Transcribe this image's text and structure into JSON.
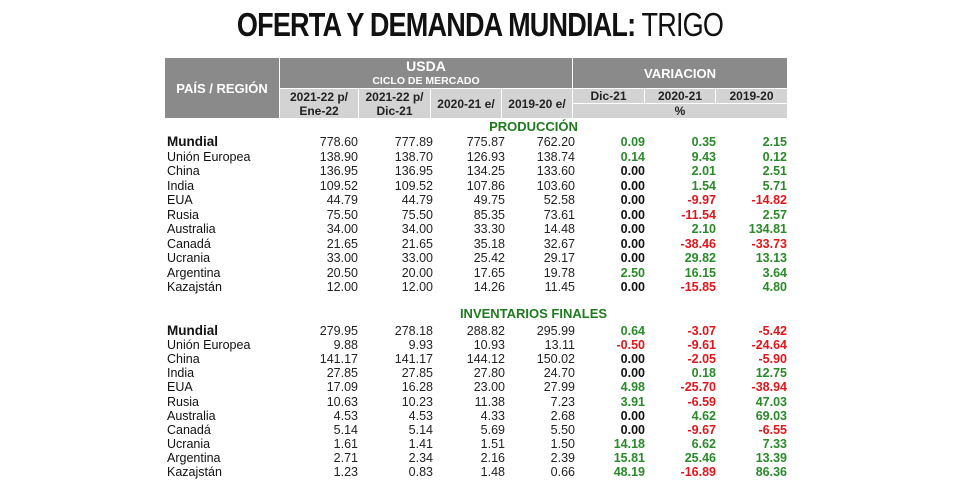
{
  "title": {
    "bold": "OFERTA Y DEMANDA MUNDIAL:",
    "light": "TRIGO"
  },
  "header": {
    "pais": "PAÍS / REGIÓN",
    "usda": "USDA",
    "ciclo": "CICLO DE MERCADO",
    "variacion": "VARIACION",
    "cols": [
      "2021-22 p/",
      "2021-22 p/",
      "2020-21 e/",
      "2019-20 e/"
    ],
    "cols_sub": [
      "Ene-22",
      "Dic-21"
    ],
    "var_cols": [
      "Dic-21",
      "2020-21",
      "2019-20"
    ],
    "pct": "%"
  },
  "sections": [
    {
      "title": "PRODUCCIÓN",
      "rows": [
        {
          "name": "Mundial",
          "vals": [
            "778.60",
            "777.89",
            "775.87",
            "762.20"
          ],
          "var": [
            "0.09",
            "0.35",
            "2.15"
          ]
        },
        {
          "name": "Unión Europea",
          "vals": [
            "138.90",
            "138.70",
            "126.93",
            "138.74"
          ],
          "var": [
            "0.14",
            "9.43",
            "0.12"
          ]
        },
        {
          "name": "China",
          "vals": [
            "136.95",
            "136.95",
            "134.25",
            "133.60"
          ],
          "var": [
            "0.00",
            "2.01",
            "2.51"
          ]
        },
        {
          "name": "India",
          "vals": [
            "109.52",
            "109.52",
            "107.86",
            "103.60"
          ],
          "var": [
            "0.00",
            "1.54",
            "5.71"
          ]
        },
        {
          "name": "EUA",
          "vals": [
            "44.79",
            "44.79",
            "49.75",
            "52.58"
          ],
          "var": [
            "0.00",
            "-9.97",
            "-14.82"
          ]
        },
        {
          "name": "Rusia",
          "vals": [
            "75.50",
            "75.50",
            "85.35",
            "73.61"
          ],
          "var": [
            "0.00",
            "-11.54",
            "2.57"
          ]
        },
        {
          "name": "Australia",
          "vals": [
            "34.00",
            "34.00",
            "33.30",
            "14.48"
          ],
          "var": [
            "0.00",
            "2.10",
            "134.81"
          ]
        },
        {
          "name": "Canadá",
          "vals": [
            "21.65",
            "21.65",
            "35.18",
            "32.67"
          ],
          "var": [
            "0.00",
            "-38.46",
            "-33.73"
          ]
        },
        {
          "name": "Ucrania",
          "vals": [
            "33.00",
            "33.00",
            "25.42",
            "29.17"
          ],
          "var": [
            "0.00",
            "29.82",
            "13.13"
          ]
        },
        {
          "name": "Argentina",
          "vals": [
            "20.50",
            "20.00",
            "17.65",
            "19.78"
          ],
          "var": [
            "2.50",
            "16.15",
            "3.64"
          ]
        },
        {
          "name": "Kazajstán",
          "vals": [
            "12.00",
            "12.00",
            "14.26",
            "11.45"
          ],
          "var": [
            "0.00",
            "-15.85",
            "4.80"
          ]
        }
      ]
    },
    {
      "title": "INVENTARIOS FINALES",
      "rows": [
        {
          "name": "Mundial",
          "vals": [
            "279.95",
            "278.18",
            "288.82",
            "295.99"
          ],
          "var": [
            "0.64",
            "-3.07",
            "-5.42"
          ]
        },
        {
          "name": "Unión Europea",
          "vals": [
            "9.88",
            "9.93",
            "10.93",
            "13.11"
          ],
          "var": [
            "-0.50",
            "-9.61",
            "-24.64"
          ]
        },
        {
          "name": "China",
          "vals": [
            "141.17",
            "141.17",
            "144.12",
            "150.02"
          ],
          "var": [
            "0.00",
            "-2.05",
            "-5.90"
          ]
        },
        {
          "name": "India",
          "vals": [
            "27.85",
            "27.85",
            "27.80",
            "24.70"
          ],
          "var": [
            "0.00",
            "0.18",
            "12.75"
          ]
        },
        {
          "name": "EUA",
          "vals": [
            "17.09",
            "16.28",
            "23.00",
            "27.99"
          ],
          "var": [
            "4.98",
            "-25.70",
            "-38.94"
          ]
        },
        {
          "name": "Rusia",
          "vals": [
            "10.63",
            "10.23",
            "11.38",
            "7.23"
          ],
          "var": [
            "3.91",
            "-6.59",
            "47.03"
          ]
        },
        {
          "name": "Australia",
          "vals": [
            "4.53",
            "4.53",
            "4.33",
            "2.68"
          ],
          "var": [
            "0.00",
            "4.62",
            "69.03"
          ]
        },
        {
          "name": "Canadá",
          "vals": [
            "5.14",
            "5.14",
            "5.69",
            "5.50"
          ],
          "var": [
            "0.00",
            "-9.67",
            "-6.55"
          ]
        },
        {
          "name": "Ucrania",
          "vals": [
            "1.61",
            "1.41",
            "1.51",
            "1.50"
          ],
          "var": [
            "14.18",
            "6.62",
            "7.33"
          ]
        },
        {
          "name": "Argentina",
          "vals": [
            "2.71",
            "2.34",
            "2.16",
            "2.39"
          ],
          "var": [
            "15.81",
            "25.46",
            "13.39"
          ]
        },
        {
          "name": "Kazajstán",
          "vals": [
            "1.23",
            "0.83",
            "1.48",
            "0.66"
          ],
          "var": [
            "48.19",
            "-16.89",
            "86.36"
          ]
        }
      ]
    }
  ]
}
